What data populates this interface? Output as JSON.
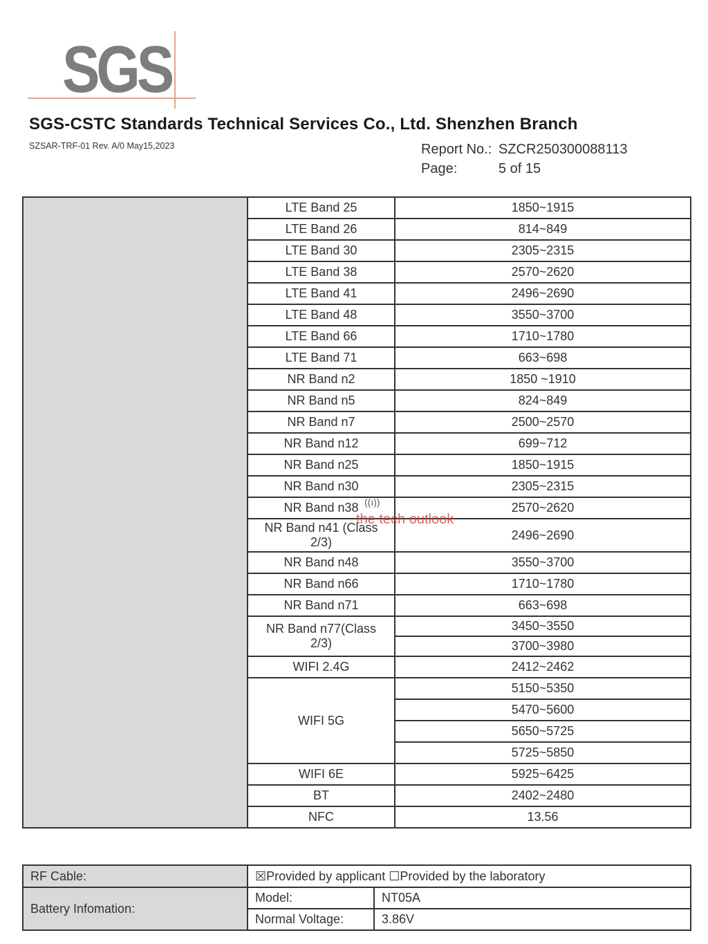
{
  "header": {
    "logo_text": "SGS",
    "company": "SGS-CSTC Standards Technical Services Co., Ltd. Shenzhen Branch",
    "form_ref": "SZSAR-TRF-01  Rev. A/0  May15,2023",
    "report_no_label": "Report No.:",
    "report_no": "SZCR250300088113",
    "page_label": "Page:",
    "page_value": "5 of 15"
  },
  "bands": [
    {
      "band": "LTE Band 25",
      "freqs": [
        "1850~1915"
      ]
    },
    {
      "band": "LTE Band 26",
      "freqs": [
        "814~849"
      ]
    },
    {
      "band": "LTE Band 30",
      "freqs": [
        "2305~2315"
      ]
    },
    {
      "band": "LTE Band 38",
      "freqs": [
        "2570~2620"
      ]
    },
    {
      "band": "LTE Band 41",
      "freqs": [
        "2496~2690"
      ]
    },
    {
      "band": "LTE Band 48",
      "freqs": [
        "3550~3700"
      ]
    },
    {
      "band": "LTE Band 66",
      "freqs": [
        "1710~1780"
      ]
    },
    {
      "band": "LTE Band 71",
      "freqs": [
        "663~698"
      ]
    },
    {
      "band": "NR Band n2",
      "freqs": [
        "1850 ~1910"
      ]
    },
    {
      "band": "NR Band n5",
      "freqs": [
        "824~849"
      ]
    },
    {
      "band": "NR Band n7",
      "freqs": [
        "2500~2570"
      ]
    },
    {
      "band": "NR Band n12",
      "freqs": [
        "699~712"
      ]
    },
    {
      "band": "NR Band n25",
      "freqs": [
        "1850~1915"
      ]
    },
    {
      "band": "NR Band n30",
      "freqs": [
        "2305~2315"
      ]
    },
    {
      "band": "NR Band n38",
      "freqs": [
        "2570~2620"
      ]
    },
    {
      "band": "NR Band n41 (Class 2/3)",
      "freqs": [
        "2496~2690"
      ],
      "tall": true
    },
    {
      "band": "NR Band n48",
      "freqs": [
        "3550~3700"
      ]
    },
    {
      "band": "NR Band n66",
      "freqs": [
        "1710~1780"
      ]
    },
    {
      "band": "NR Band n71",
      "freqs": [
        "663~698"
      ]
    },
    {
      "band": "NR Band n77(Class 2/3)",
      "freqs": [
        "3450~3550",
        "3700~3980"
      ]
    },
    {
      "band": "WIFI 2.4G",
      "freqs": [
        "2412~2462"
      ]
    },
    {
      "band": "WIFI 5G",
      "freqs": [
        "5150~5350",
        "5470~5600",
        "5650~5725",
        "5725~5850"
      ]
    },
    {
      "band": "WIFI 6E",
      "freqs": [
        "5925~6425"
      ]
    },
    {
      "band": "BT",
      "freqs": [
        "2402~2480"
      ]
    },
    {
      "band": "NFC",
      "freqs": [
        "13.56"
      ]
    }
  ],
  "rf_cable": {
    "label": "RF Cable:",
    "option1": "Provided by applicant",
    "option1_checked": true,
    "option2": "Provided by the laboratory",
    "option2_checked": false
  },
  "battery": {
    "label": "Battery Infomation:",
    "model_label": "Model:",
    "model": "NT05A",
    "voltage_label": "Normal Voltage:",
    "voltage": "3.86V"
  },
  "watermark": {
    "text": "thetechoutlook",
    "icon": "antenna-icon",
    "color": "#d04040"
  }
}
